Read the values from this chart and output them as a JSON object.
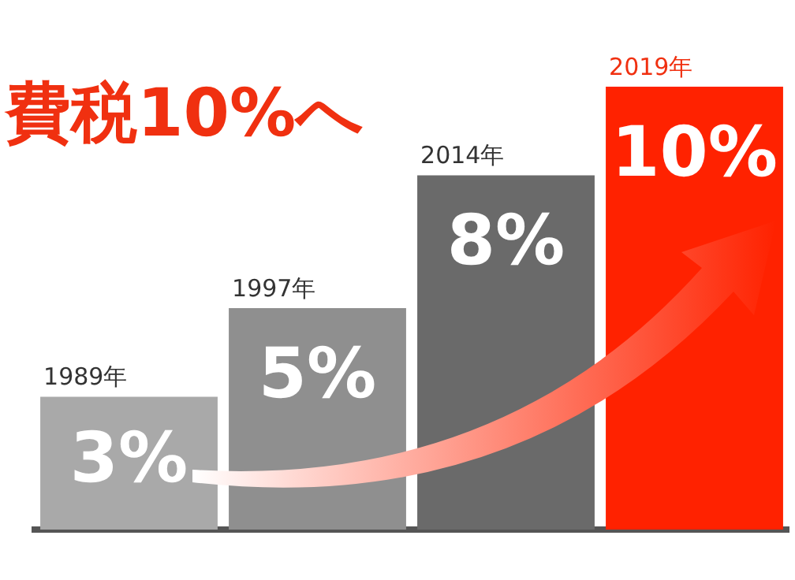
{
  "chart_data": {
    "type": "bar",
    "title": "費税10%へ",
    "tick_labels": false,
    "categories": [
      "1989年",
      "1997年",
      "2014年",
      "2019年"
    ],
    "values": [
      3,
      5,
      8,
      10
    ],
    "value_labels": [
      "3%",
      "5%",
      "8%",
      "10%"
    ],
    "colors": [
      "#a9a9a9",
      "#8f8f8f",
      "#6a6a6a",
      "#ff2200"
    ],
    "legend": false,
    "grid": false
  }
}
